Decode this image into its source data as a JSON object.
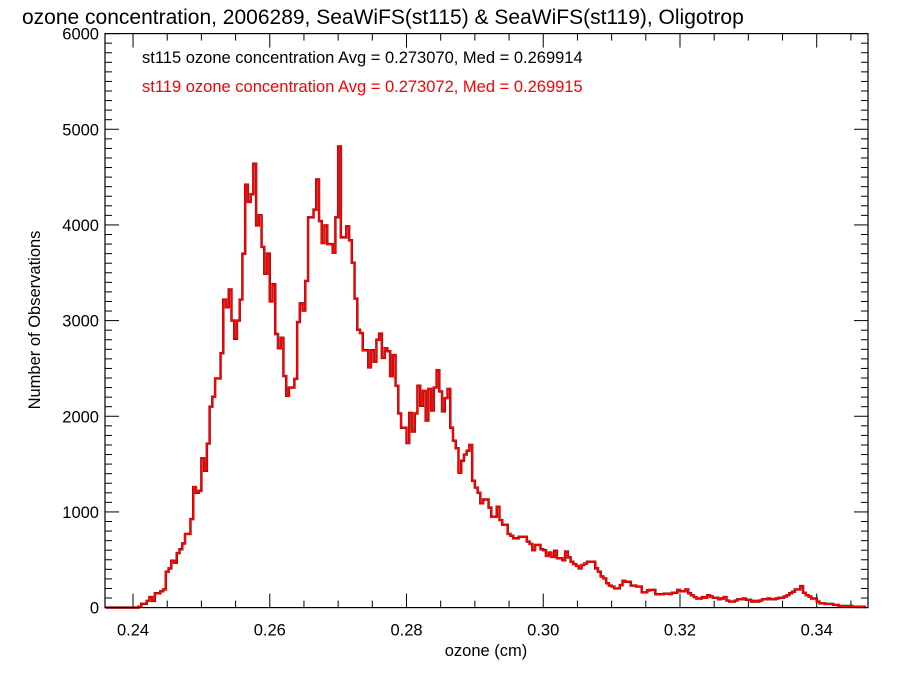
{
  "chart_data": {
    "type": "line",
    "style": "histogram-step",
    "title": "ozone concentration, 2006289, SeaWiFS(st115) & SeaWiFS(st119), Oligotrop",
    "xlabel": "ozone (cm)",
    "ylabel": "Number of Observations",
    "xlim": [
      0.2359,
      0.3475
    ],
    "ylim": [
      0,
      6000
    ],
    "xticks": [
      0.24,
      0.26,
      0.28,
      0.3,
      0.32,
      0.34
    ],
    "xtick_labels": [
      "0.24",
      "0.26",
      "0.28",
      "0.30",
      "0.32",
      "0.34"
    ],
    "x_minor_step": 0.005,
    "yticks": [
      0,
      1000,
      2000,
      3000,
      4000,
      5000,
      6000
    ],
    "ytick_labels": [
      "0",
      "1000",
      "2000",
      "3000",
      "4000",
      "5000",
      "6000"
    ],
    "y_minor_step": 100,
    "grid": false,
    "legend_placement": "top-left",
    "annotations": [
      {
        "text": "st115 ozone concentration Avg = 0.273070, Med = 0.269914",
        "color": "#000000"
      },
      {
        "text": "st119 ozone concentration Avg = 0.273072, Med = 0.269915",
        "color": "#ff0000"
      }
    ],
    "bin_start": 0.236,
    "bin_width": 0.0004,
    "series": [
      {
        "name": "st115",
        "color": "#000000",
        "values_ref": "values"
      },
      {
        "name": "st119",
        "color": "#ff0000",
        "values_ref": "values"
      }
    ],
    "values": [
      0,
      0,
      0,
      0,
      0,
      0,
      0,
      0,
      0,
      0,
      0,
      0,
      10,
      40,
      40,
      70,
      110,
      70,
      150,
      150,
      170,
      190,
      375,
      410,
      490,
      470,
      570,
      610,
      670,
      770,
      770,
      925,
      1260,
      1200,
      1220,
      1560,
      1430,
      1715,
      2100,
      2205,
      2395,
      2395,
      2660,
      3220,
      3140,
      3325,
      3000,
      2810,
      3000,
      3220,
      3700,
      4420,
      4240,
      4320,
      4640,
      3995,
      4100,
      3770,
      3490,
      3700,
      3200,
      3380,
      2860,
      2710,
      2820,
      2420,
      2215,
      2300,
      2300,
      2390,
      2985,
      3180,
      3105,
      3415,
      4080,
      4080,
      4160,
      4475,
      4040,
      3810,
      3995,
      3800,
      3800,
      3710,
      4080,
      4820,
      3870,
      3870,
      3985,
      3840,
      3605,
      3230,
      2905,
      2870,
      2690,
      2690,
      2510,
      2690,
      2570,
      2800,
      2865,
      2610,
      2710,
      2680,
      2420,
      2640,
      2320,
      2030,
      1880,
      1880,
      1720,
      2035,
      1840,
      2030,
      2320,
      2110,
      2265,
      1955,
      2285,
      2060,
      2300,
      2480,
      2260,
      2050,
      2190,
      2285,
      1880,
      1745,
      1665,
      1410,
      1535,
      1600,
      1640,
      1700,
      1325,
      1255,
      1200,
      1090,
      1130,
      1130,
      1045,
      950,
      950,
      1055,
      915,
      865,
      865,
      770,
      750,
      725,
      725,
      740,
      740,
      740,
      690,
      665,
      600,
      655,
      655,
      610,
      600,
      540,
      575,
      530,
      595,
      515,
      515,
      495,
      585,
      525,
      480,
      455,
      435,
      410,
      445,
      460,
      480,
      480,
      480,
      410,
      375,
      325,
      305,
      255,
      230,
      220,
      200,
      200,
      235,
      280,
      270,
      270,
      230,
      230,
      220,
      220,
      160,
      160,
      180,
      185,
      185,
      140,
      140,
      140,
      145,
      145,
      142,
      155,
      155,
      185,
      170,
      170,
      190,
      150,
      130,
      110,
      95,
      95,
      110,
      102,
      130,
      116,
      102,
      102,
      88,
      95,
      110,
      74,
      63,
      63,
      74,
      88,
      88,
      95,
      81,
      81,
      63,
      70,
      63,
      74,
      88,
      88,
      95,
      88,
      88,
      95,
      102,
      102,
      116,
      130,
      150,
      166,
      190,
      190,
      225,
      155,
      130,
      116,
      95,
      95,
      63,
      45,
      45,
      38,
      38,
      38,
      28,
      28,
      17,
      10,
      17,
      17,
      17,
      10,
      10,
      10,
      10,
      10
    ]
  }
}
